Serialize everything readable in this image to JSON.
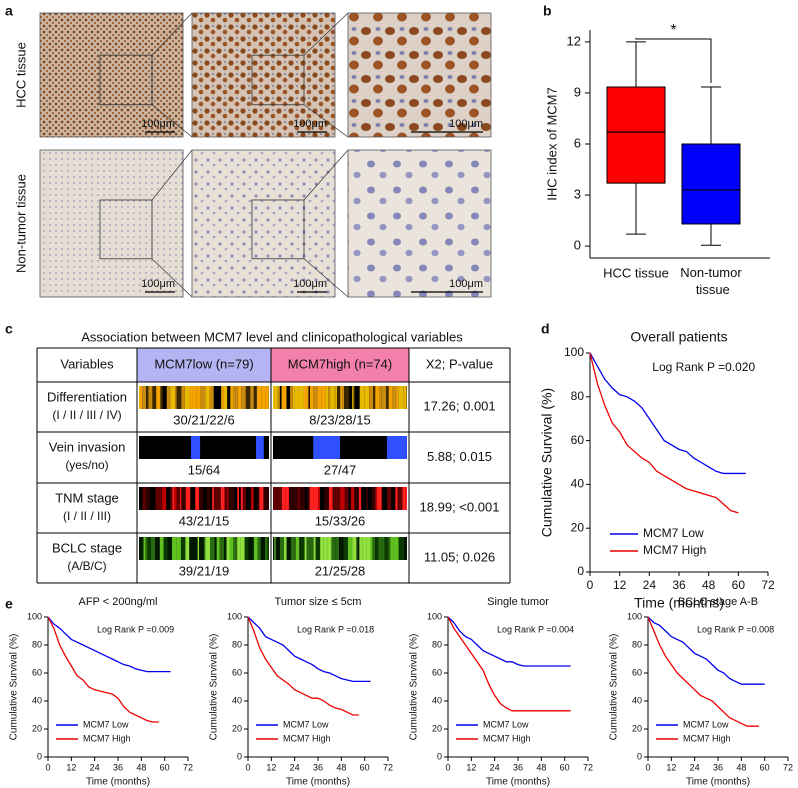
{
  "panel_labels": [
    "a",
    "b",
    "c",
    "d",
    "e"
  ],
  "panel_a": {
    "rows": [
      "HCC tissue",
      "Non-tumor tissue"
    ],
    "scale_bars": [
      "100μm",
      "100μm",
      "100μm",
      "100μm",
      "100μm",
      "100μm"
    ]
  },
  "table": {
    "title": "Association between MCM7 level and clinicopathological variables",
    "header": [
      "Variables",
      "MCM7low (n=79)",
      "MCM7high (n=74)",
      "X2; P-value"
    ],
    "rows": [
      [
        "Differentiation",
        "(I / II / III / IV)",
        "30/21/22/6",
        "8/23/28/15",
        "17.26; 0.001"
      ],
      [
        "Vein invasion",
        "(yes/no)",
        "15/64",
        "27/47",
        "5.88; 0.015"
      ],
      [
        "TNM stage",
        "(I / II / III)",
        "43/21/15",
        "15/33/26",
        "18.99; <0.001"
      ],
      [
        "BCLC stage",
        "(A/B/C)",
        "39/21/19",
        "21/25/28",
        "11.05; 0.026"
      ]
    ]
  },
  "chart_data": [
    {
      "type": "box",
      "ylabel": "IHC index of MCM7",
      "categories": [
        "HCC tissue",
        "Non-tumor tissue"
      ],
      "colors": [
        "#ff0000",
        "#0000ff"
      ],
      "min": [
        0.7,
        0.05
      ],
      "q1": [
        3.7,
        1.3
      ],
      "median": [
        6.7,
        3.3
      ],
      "q3": [
        9.35,
        6.0
      ],
      "max": [
        12.0,
        9.35
      ],
      "significance": "*",
      "ylim": [
        -0.7,
        12.7
      ],
      "yticks": [
        0,
        3,
        6,
        9,
        12
      ]
    },
    {
      "type": "survival",
      "title": "Overall patients",
      "annotation": "Log Rank P =0.020",
      "xlabel": "Time (months)",
      "ylabel": "Cumulative Survival (%)",
      "x": [
        0,
        3,
        6,
        9,
        12,
        15,
        18,
        21,
        24,
        27,
        30,
        33,
        36,
        39,
        42,
        45,
        48,
        51,
        54,
        57,
        60,
        63
      ],
      "series": [
        {
          "name": "MCM7 Low",
          "color": "#0000ee",
          "values": [
            100,
            94,
            88,
            84,
            81,
            80,
            78,
            75,
            70,
            65,
            60,
            58,
            56,
            55,
            52,
            50,
            48,
            46,
            45,
            45,
            45,
            45
          ]
        },
        {
          "name": "MCM7 High",
          "color": "#ee0000",
          "values": [
            100,
            86,
            76,
            68,
            64,
            58,
            55,
            52,
            50,
            46,
            44,
            42,
            40,
            38,
            37,
            36,
            35,
            34,
            31,
            28,
            27,
            null
          ]
        }
      ],
      "xlim": [
        0,
        72
      ],
      "xticks": [
        0,
        12,
        24,
        36,
        48,
        60,
        72
      ],
      "ylim": [
        0,
        100
      ],
      "yticks": [
        0,
        20,
        40,
        60,
        80,
        100
      ]
    },
    {
      "type": "survival",
      "title": "AFP < 200ng/ml",
      "annotation": "Log Rank P =0.009",
      "xlabel": "Time (months)",
      "ylabel": "Cumulative Survival (%)",
      "x": [
        0,
        3,
        6,
        9,
        12,
        15,
        18,
        21,
        24,
        27,
        30,
        33,
        36,
        39,
        42,
        45,
        48,
        51,
        54,
        57,
        60,
        63
      ],
      "series": [
        {
          "name": "MCM7 Low",
          "color": "#0000ee",
          "values": [
            100,
            95,
            92,
            88,
            84,
            82,
            80,
            78,
            76,
            74,
            72,
            70,
            68,
            66,
            65,
            63,
            62,
            61,
            61,
            61,
            61,
            61
          ]
        },
        {
          "name": "MCM7 High",
          "color": "#ee0000",
          "values": [
            100,
            92,
            80,
            72,
            65,
            58,
            55,
            50,
            48,
            47,
            46,
            45,
            42,
            36,
            32,
            30,
            28,
            26,
            25,
            25,
            null,
            null
          ]
        }
      ],
      "xlim": [
        0,
        72
      ],
      "xticks": [
        0,
        12,
        24,
        36,
        48,
        60,
        72
      ],
      "ylim": [
        0,
        100
      ],
      "yticks": [
        0,
        20,
        40,
        60,
        80,
        100
      ]
    },
    {
      "type": "survival",
      "title": "Tumor size ≤ 5cm",
      "annotation": "Log Rank P =0.018",
      "xlabel": "Time (months)",
      "ylabel": "Cumulative Survival (%)",
      "x": [
        0,
        3,
        6,
        9,
        12,
        15,
        18,
        21,
        24,
        27,
        30,
        33,
        36,
        39,
        42,
        45,
        48,
        51,
        54,
        57,
        60,
        63
      ],
      "series": [
        {
          "name": "MCM7 Low",
          "color": "#0000ee",
          "values": [
            100,
            96,
            92,
            86,
            84,
            82,
            80,
            76,
            72,
            70,
            68,
            66,
            63,
            61,
            60,
            58,
            56,
            55,
            54,
            54,
            54,
            54
          ]
        },
        {
          "name": "MCM7 High",
          "color": "#ee0000",
          "values": [
            100,
            90,
            78,
            70,
            64,
            58,
            55,
            52,
            48,
            46,
            44,
            42,
            42,
            40,
            37,
            35,
            34,
            32,
            30,
            30,
            null,
            null
          ]
        }
      ],
      "xlim": [
        0,
        72
      ],
      "xticks": [
        0,
        12,
        24,
        36,
        48,
        60,
        72
      ],
      "ylim": [
        0,
        100
      ],
      "yticks": [
        0,
        20,
        40,
        60,
        80,
        100
      ]
    },
    {
      "type": "survival",
      "title": "Single tumor",
      "annotation": "Log Rank P =0.004",
      "xlabel": "Time (months)",
      "ylabel": "Cumulative Survival (%)",
      "x": [
        0,
        3,
        6,
        9,
        12,
        15,
        18,
        21,
        24,
        27,
        30,
        33,
        36,
        39,
        42,
        45,
        48,
        51,
        54,
        57,
        60,
        63
      ],
      "series": [
        {
          "name": "MCM7 Low",
          "color": "#0000ee",
          "values": [
            100,
            96,
            90,
            86,
            84,
            80,
            76,
            74,
            72,
            70,
            68,
            68,
            66,
            65,
            65,
            65,
            65,
            65,
            65,
            65,
            65,
            65
          ]
        },
        {
          "name": "MCM7 High",
          "color": "#ee0000",
          "values": [
            100,
            92,
            86,
            80,
            74,
            68,
            62,
            52,
            44,
            38,
            35,
            33,
            33,
            33,
            33,
            33,
            33,
            33,
            33,
            33,
            33,
            33
          ]
        }
      ],
      "xlim": [
        0,
        72
      ],
      "xticks": [
        0,
        12,
        24,
        36,
        48,
        60,
        72
      ],
      "ylim": [
        0,
        100
      ],
      "yticks": [
        0,
        20,
        40,
        60,
        80,
        100
      ]
    },
    {
      "type": "survival",
      "title": "BCLC stage A-B",
      "annotation": "Log Rank P =0.008",
      "xlabel": "Time (months)",
      "ylabel": "Cumulative Survival (%)",
      "x": [
        0,
        3,
        6,
        9,
        12,
        15,
        18,
        21,
        24,
        27,
        30,
        33,
        36,
        39,
        42,
        45,
        48,
        51,
        54,
        57,
        60,
        63
      ],
      "series": [
        {
          "name": "MCM7 Low",
          "color": "#0000ee",
          "values": [
            100,
            96,
            94,
            90,
            86,
            84,
            82,
            78,
            74,
            72,
            70,
            66,
            62,
            60,
            56,
            54,
            52,
            52,
            52,
            52,
            52,
            null
          ]
        },
        {
          "name": "MCM7 High",
          "color": "#ee0000",
          "values": [
            100,
            90,
            80,
            72,
            66,
            60,
            56,
            52,
            48,
            44,
            42,
            40,
            36,
            32,
            28,
            26,
            24,
            22,
            22,
            22,
            null,
            null
          ]
        }
      ],
      "xlim": [
        0,
        72
      ],
      "xticks": [
        0,
        12,
        24,
        36,
        48,
        60,
        72
      ],
      "ylim": [
        0,
        100
      ],
      "yticks": [
        0,
        20,
        40,
        60,
        80,
        100
      ]
    }
  ]
}
